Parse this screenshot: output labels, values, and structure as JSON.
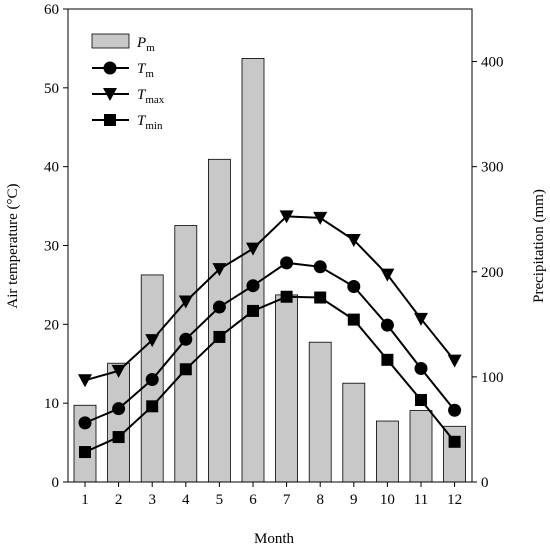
{
  "chart_data": {
    "type": "bar+line",
    "xlabel": "Month",
    "ylabel_left": "Air temperature (°C)",
    "ylabel_right": "Precipitation (mm)",
    "categories": [
      "1",
      "2",
      "3",
      "4",
      "5",
      "6",
      "7",
      "8",
      "9",
      "10",
      "11",
      "12"
    ],
    "y_left_lim": [
      0,
      60
    ],
    "y_left_ticks": [
      "0",
      "10",
      "20",
      "30",
      "40",
      "50",
      "60"
    ],
    "y_right_lim": [
      0,
      450
    ],
    "y_right_ticks": [
      "0",
      "100",
      "200",
      "300",
      "400"
    ],
    "bar_series": {
      "name": "P",
      "name_sub": "m",
      "axis": "right",
      "color": "#c8c8c8",
      "values": [
        73,
        113,
        197,
        244,
        307,
        403,
        178,
        133,
        94,
        58,
        68,
        53
      ]
    },
    "line_series": [
      {
        "name": "T",
        "name_sub": "max",
        "axis": "left",
        "marker": "triangle-down",
        "values": [
          12.9,
          14.1,
          18.0,
          22.9,
          27.0,
          29.6,
          33.7,
          33.5,
          30.7,
          26.3,
          20.7,
          15.4
        ]
      },
      {
        "name": "T",
        "name_sub": "m",
        "axis": "left",
        "marker": "circle",
        "values": [
          7.5,
          9.3,
          13.0,
          18.1,
          22.2,
          24.9,
          27.8,
          27.3,
          24.8,
          19.9,
          14.4,
          9.1
        ]
      },
      {
        "name": "T",
        "name_sub": "min",
        "axis": "left",
        "marker": "square",
        "values": [
          3.8,
          5.7,
          9.6,
          14.3,
          18.4,
          21.7,
          23.5,
          23.4,
          20.6,
          15.5,
          10.4,
          5.1
        ]
      }
    ],
    "legend": {
      "placement": "top-left",
      "entries": [
        {
          "name": "P",
          "sub": "m",
          "kind": "bar"
        },
        {
          "name": "T",
          "sub": "m",
          "kind": "circle"
        },
        {
          "name": "T",
          "sub": "max",
          "kind": "triangle-down"
        },
        {
          "name": "T",
          "sub": "min",
          "kind": "square"
        }
      ]
    },
    "grid": false
  }
}
